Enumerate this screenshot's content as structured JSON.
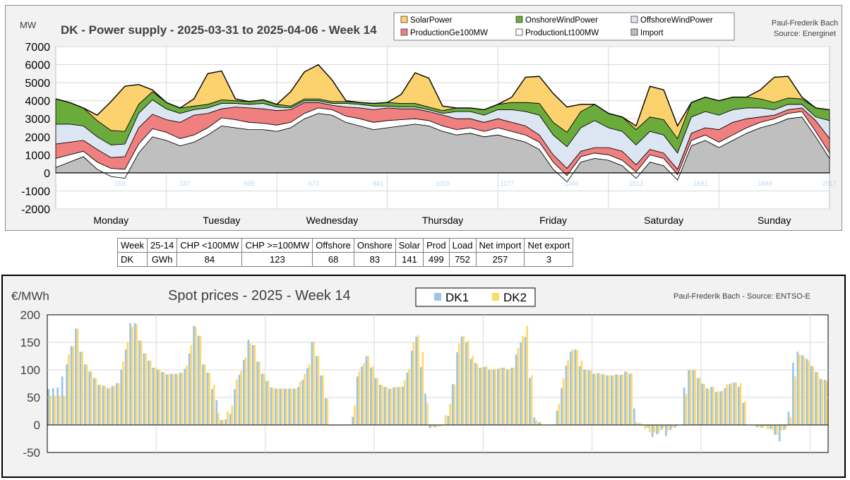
{
  "chart_data": [
    {
      "type": "area",
      "stacked": true,
      "title": "DK - Power supply - 2025-03-31 to 2025-04-06 - Week 14",
      "ylabel": "MW",
      "credit": [
        "Paul-Frederik Bach",
        "Source: Energinet"
      ],
      "ylim": [
        -2000,
        7000
      ],
      "yticks": [
        -2000,
        -1000,
        0,
        1000,
        2000,
        3000,
        4000,
        5000,
        6000,
        7000
      ],
      "xlim": [
        0,
        168
      ],
      "x_hour_labels": [
        "1",
        "169",
        "337",
        "505",
        "673",
        "841",
        "1009",
        "1177",
        "1345",
        "1513",
        "1681",
        "1849",
        "2017"
      ],
      "day_labels": [
        "Monday",
        "Tuesday",
        "Wednesday",
        "Thursday",
        "Friday",
        "Saturday",
        "Sunday"
      ],
      "legend_position": "top-center",
      "grid": true,
      "x": [
        0,
        3,
        6,
        9,
        12,
        15,
        18,
        21,
        24,
        27,
        30,
        33,
        36,
        39,
        42,
        45,
        48,
        51,
        54,
        57,
        60,
        63,
        66,
        69,
        72,
        75,
        78,
        81,
        84,
        87,
        90,
        93,
        96,
        99,
        102,
        105,
        108,
        111,
        114,
        117,
        120,
        123,
        126,
        129,
        132,
        135,
        138,
        141,
        144,
        147,
        150,
        153,
        156,
        159,
        162,
        165,
        168
      ],
      "series": [
        {
          "name": "Import",
          "color": "#bfbfbf",
          "values": [
            300,
            600,
            900,
            200,
            -200,
            -300,
            1100,
            2000,
            1800,
            1500,
            1700,
            2100,
            2600,
            2500,
            2400,
            2400,
            2300,
            2500,
            3000,
            3300,
            3200,
            2800,
            2600,
            2400,
            2500,
            2600,
            2700,
            2600,
            2300,
            2100,
            2200,
            2000,
            2100,
            1900,
            1700,
            1300,
            200,
            -500,
            600,
            800,
            700,
            400,
            -300,
            600,
            400,
            -400,
            1500,
            1800,
            1400,
            1800,
            2200,
            2500,
            2700,
            3000,
            3100,
            2000,
            800
          ]
        },
        {
          "name": "ProductionLt100MW",
          "color": "#ffffff",
          "values": [
            500,
            400,
            300,
            400,
            450,
            500,
            500,
            450,
            450,
            400,
            400,
            400,
            450,
            450,
            400,
            350,
            350,
            300,
            300,
            300,
            300,
            350,
            400,
            400,
            400,
            350,
            300,
            300,
            300,
            300,
            300,
            300,
            400,
            400,
            400,
            400,
            400,
            350,
            300,
            300,
            300,
            300,
            350,
            400,
            400,
            300,
            300,
            300,
            300,
            300,
            300,
            300,
            300,
            300,
            300,
            300,
            300
          ]
        },
        {
          "name": "ProductionGe100MW",
          "color": "#f08080",
          "values": [
            800,
            700,
            600,
            700,
            600,
            700,
            900,
            800,
            700,
            900,
            1100,
            800,
            500,
            700,
            800,
            800,
            800,
            700,
            600,
            300,
            250,
            500,
            600,
            700,
            700,
            600,
            550,
            500,
            600,
            600,
            500,
            500,
            500,
            500,
            500,
            400,
            400,
            400,
            300,
            300,
            400,
            500,
            400,
            300,
            300,
            300,
            400,
            400,
            700,
            700,
            500,
            300,
            200,
            200,
            200,
            600,
            800
          ]
        },
        {
          "name": "OffshoreWindPower",
          "color": "#dce6f2",
          "values": [
            1100,
            1000,
            800,
            700,
            700,
            700,
            800,
            800,
            600,
            500,
            300,
            300,
            300,
            200,
            200,
            300,
            200,
            100,
            100,
            100,
            100,
            200,
            200,
            200,
            100,
            100,
            100,
            100,
            100,
            400,
            400,
            400,
            500,
            700,
            800,
            1100,
            1100,
            1200,
            1300,
            1500,
            1100,
            1100,
            1100,
            1000,
            1000,
            900,
            900,
            900,
            800,
            700,
            600,
            500,
            300,
            300,
            200,
            200,
            1000
          ]
        },
        {
          "name": "OnshoreWindPower",
          "color": "#6aab3c",
          "values": [
            1400,
            1200,
            1000,
            900,
            800,
            700,
            500,
            450,
            350,
            300,
            200,
            200,
            200,
            150,
            150,
            200,
            150,
            100,
            100,
            100,
            100,
            100,
            100,
            150,
            200,
            200,
            200,
            150,
            150,
            200,
            200,
            300,
            300,
            400,
            500,
            650,
            700,
            800,
            900,
            900,
            800,
            800,
            850,
            800,
            850,
            800,
            800,
            800,
            800,
            700,
            600,
            500,
            400,
            350,
            300,
            500,
            600
          ]
        },
        {
          "name": "SolarPower",
          "color": "#fcd26e",
          "values": [
            0,
            0,
            0,
            300,
            1600,
            2500,
            1100,
            100,
            0,
            0,
            400,
            1700,
            1600,
            100,
            0,
            0,
            0,
            800,
            1500,
            1900,
            1200,
            50,
            0,
            0,
            0,
            500,
            1700,
            1600,
            250,
            0,
            0,
            0,
            0,
            300,
            1400,
            1500,
            1600,
            1400,
            400,
            0,
            0,
            0,
            200,
            1700,
            1650,
            700,
            0,
            0,
            0,
            0,
            0,
            500,
            1400,
            1200,
            100,
            0,
            0
          ]
        }
      ]
    },
    {
      "type": "bar",
      "title": "Spot prices - 2025 - Week 14",
      "ylabel": "€/MWh",
      "credit": "Paul-Frederik Bach - Source: ENTSO-E",
      "ylim": [
        -50,
        200
      ],
      "yticks": [
        -50,
        0,
        50,
        100,
        150,
        200
      ],
      "legend_position": "top-center",
      "grid": true,
      "hours_per_day": 24,
      "series": [
        {
          "name": "DK1",
          "color": "#9dc3e6",
          "values": [
            65,
            67,
            68,
            88,
            110,
            143,
            175,
            133,
            110,
            97,
            85,
            73,
            71,
            67,
            71,
            76,
            100,
            137,
            185,
            185,
            153,
            130,
            117,
            104,
            101,
            96,
            92,
            93,
            93,
            95,
            102,
            130,
            180,
            162,
            110,
            95,
            65,
            45,
            9,
            10,
            20,
            65,
            91,
            118,
            155,
            145,
            115,
            93,
            80,
            68,
            66,
            66,
            66,
            66,
            66,
            69,
            82,
            103,
            151,
            125,
            90,
            48,
            -1,
            -1,
            -1,
            -1,
            -1,
            15,
            88,
            106,
            125,
            104,
            85,
            73,
            69,
            66,
            68,
            69,
            70,
            95,
            135,
            160,
            105,
            57,
            -6,
            -4,
            -2,
            0,
            16,
            74,
            132,
            160,
            150,
            120,
            113,
            104,
            105,
            101,
            101,
            102,
            104,
            101,
            104,
            128,
            150,
            160,
            85,
            14,
            5,
            0,
            0,
            0,
            26,
            67,
            108,
            133,
            137,
            107,
            101,
            99,
            93,
            94,
            92,
            90,
            90,
            92,
            91,
            97,
            93,
            30,
            3,
            -1,
            -5,
            -22,
            -17,
            -9,
            -20,
            -9,
            -5,
            0,
            68,
            100,
            100,
            85,
            75,
            67,
            69,
            60,
            61,
            67,
            74,
            77,
            69,
            40,
            0,
            -1,
            -4,
            -5,
            -2,
            -7,
            -18,
            -30,
            -9,
            24,
            113,
            133,
            127,
            120,
            107,
            96,
            84,
            82
          ]
        },
        {
          "name": "DK2",
          "color": "#ffd966",
          "values": [
            53,
            53,
            53,
            53,
            128,
            143,
            175,
            133,
            110,
            97,
            85,
            73,
            71,
            67,
            71,
            76,
            115,
            150,
            178,
            183,
            153,
            130,
            117,
            104,
            101,
            96,
            92,
            93,
            93,
            95,
            108,
            145,
            178,
            162,
            110,
            95,
            73,
            22,
            9,
            25,
            35,
            83,
            98,
            122,
            148,
            145,
            115,
            93,
            80,
            68,
            66,
            66,
            66,
            66,
            66,
            79,
            93,
            110,
            152,
            125,
            90,
            48,
            -1,
            -1,
            -1,
            -1,
            -1,
            35,
            97,
            112,
            125,
            106,
            85,
            73,
            69,
            66,
            69,
            69,
            81,
            102,
            150,
            163,
            132,
            40,
            -4,
            -4,
            -2,
            18,
            38,
            74,
            148,
            162,
            153,
            125,
            111,
            104,
            107,
            101,
            102,
            104,
            104,
            101,
            104,
            140,
            162,
            180,
            90,
            8,
            5,
            0,
            0,
            1,
            38,
            85,
            117,
            137,
            136,
            117,
            101,
            99,
            93,
            94,
            92,
            90,
            90,
            91,
            92,
            97,
            94,
            5,
            3,
            -8,
            -13,
            -14,
            -15,
            -6,
            -10,
            -5,
            -2,
            0,
            56,
            100,
            100,
            86,
            75,
            65,
            69,
            61,
            62,
            74,
            76,
            77,
            76,
            43,
            0,
            -1,
            -4,
            -5,
            -8,
            -9,
            -18,
            -10,
            -7,
            14,
            88,
            128,
            124,
            117,
            106,
            96,
            82,
            80
          ]
        }
      ]
    }
  ],
  "summary_table": {
    "headers": [
      "Week",
      "25-14",
      "CHP <100MW",
      "CHP >=100MW",
      "Offshore",
      "Onshore",
      "Solar",
      "Prod",
      "Load",
      "Net import",
      "Net export"
    ],
    "row": [
      "DK",
      "GWh",
      "84",
      "123",
      "68",
      "83",
      "141",
      "499",
      "752",
      "257",
      "3"
    ]
  }
}
